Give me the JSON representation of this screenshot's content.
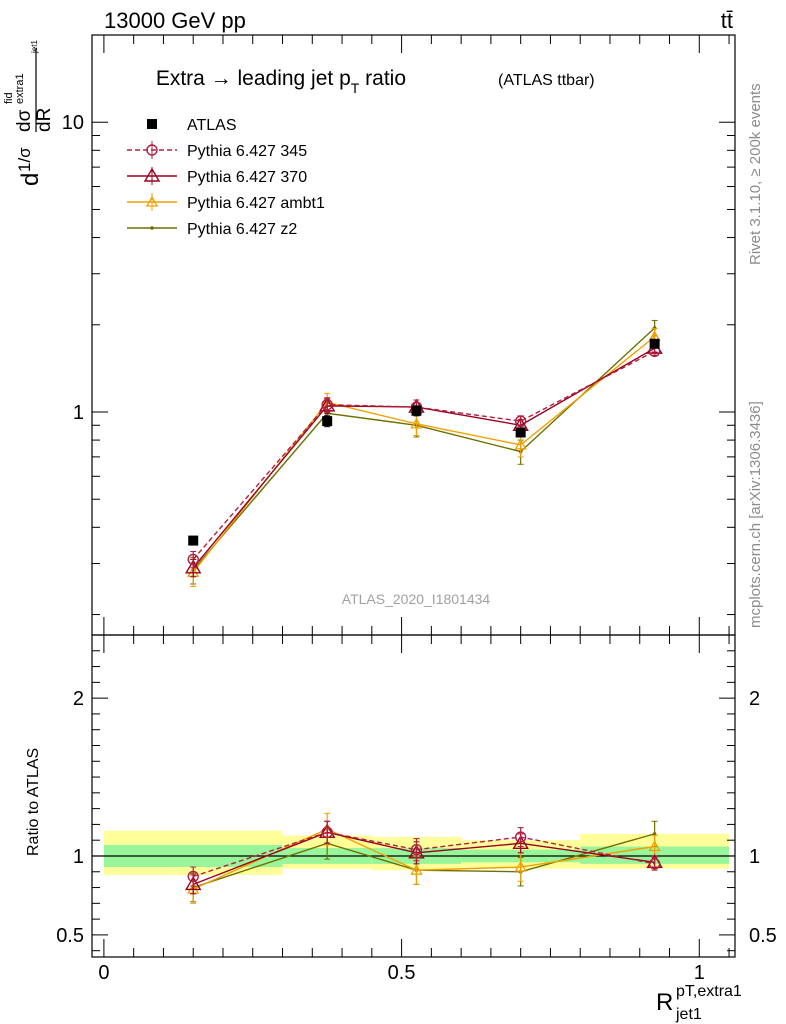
{
  "header": {
    "energy_label": "13000 GeV pp",
    "process_label": "tt̄"
  },
  "side_labels": {
    "rivet": "Rivet 3.1.10, ≥ 200k events",
    "mcplots": "mcplots.cern.ch [arXiv:1306.3436]"
  },
  "watermark": "ATLAS_2020_I1801434",
  "colors": {
    "data": "#000000",
    "p345": "#b02040",
    "p370": "#990020",
    "ambt1": "#f0a000",
    "z2": "#707000",
    "band_inner": "#99f599",
    "band_outer": "#ffff99"
  },
  "chart_data": [
    {
      "type": "line",
      "panel": "main",
      "title": {
        "main": "Extra → leading jet p",
        "sub": "T",
        "rest": " ratio",
        "small": "(ATLAS ttbar)"
      },
      "ylabel": {
        "base": "d",
        "frac": "1/σ",
        "num": "dσ",
        "num_sup": "fid",
        "num_sub": "extra1",
        "den": "dR",
        "den_sub": "jet1"
      },
      "yscale": "log",
      "ylim": [
        0.17,
        20
      ],
      "xlim": [
        -0.02,
        1.06
      ],
      "yticks": [
        {
          "value": 1,
          "label": "1"
        },
        {
          "value": 10,
          "label": "10"
        }
      ],
      "legend_position": "top-left",
      "series": [
        {
          "name": "ATLAS",
          "key": "data",
          "marker": "square",
          "x": [
            0.15,
            0.375,
            0.525,
            0.7,
            0.925
          ],
          "y": [
            0.36,
            0.93,
            1.01,
            0.85,
            1.72
          ],
          "err": [
            0.01,
            0.04,
            0.04,
            0.03,
            0.05
          ]
        },
        {
          "name": "Pythia 6.427 345",
          "key": "p345",
          "marker": "circle",
          "dashed": true,
          "x": [
            0.15,
            0.375,
            0.525,
            0.7,
            0.925
          ],
          "y": [
            0.31,
            1.06,
            1.04,
            0.93,
            1.62
          ],
          "err": [
            0.02,
            0.06,
            0.06,
            0.04,
            0.05
          ]
        },
        {
          "name": "Pythia 6.427 370",
          "key": "p370",
          "marker": "triangle",
          "x": [
            0.15,
            0.375,
            0.525,
            0.7,
            0.925
          ],
          "y": [
            0.29,
            1.05,
            1.04,
            0.9,
            1.66
          ],
          "err": [
            0.02,
            0.06,
            0.06,
            0.04,
            0.05
          ]
        },
        {
          "name": "Pythia 6.427 ambt1",
          "key": "ambt1",
          "marker": "triangle-small",
          "x": [
            0.15,
            0.375,
            0.525,
            0.7,
            0.925
          ],
          "y": [
            0.28,
            1.08,
            0.91,
            0.77,
            1.82
          ],
          "err": [
            0.03,
            0.08,
            0.08,
            0.07,
            0.12
          ]
        },
        {
          "name": "Pythia 6.427 z2",
          "key": "z2",
          "marker": "dot",
          "x": [
            0.15,
            0.375,
            0.525,
            0.7,
            0.925
          ],
          "y": [
            0.285,
            0.99,
            0.9,
            0.73,
            1.95
          ],
          "err": [
            0.03,
            0.08,
            0.08,
            0.07,
            0.12
          ]
        }
      ]
    },
    {
      "type": "line",
      "panel": "ratio",
      "ylabel": "Ratio to ATLAS",
      "xlabel": {
        "base": "R",
        "sup": "pT,extra1",
        "sub": "jet1"
      },
      "ylim": [
        0.36,
        2.4
      ],
      "xlim": [
        -0.02,
        1.06
      ],
      "yticks": [
        {
          "value": 0.5,
          "label": "0.5"
        },
        {
          "value": 1,
          "label": "1"
        },
        {
          "value": 2,
          "label": "2"
        }
      ],
      "xticks": [
        {
          "value": 0,
          "label": "0"
        },
        {
          "value": 0.5,
          "label": "0.5"
        },
        {
          "value": 1,
          "label": "1"
        }
      ],
      "bands": [
        {
          "x0": 0.0,
          "x1": 0.3,
          "inner": [
            0.93,
            1.07
          ],
          "outer": [
            0.88,
            1.16
          ]
        },
        {
          "x0": 0.3,
          "x1": 0.45,
          "inner": [
            0.95,
            1.05
          ],
          "outer": [
            0.92,
            1.13
          ]
        },
        {
          "x0": 0.45,
          "x1": 0.6,
          "inner": [
            0.95,
            1.05
          ],
          "outer": [
            0.91,
            1.12
          ]
        },
        {
          "x0": 0.6,
          "x1": 0.8,
          "inner": [
            0.96,
            1.04
          ],
          "outer": [
            0.92,
            1.1
          ]
        },
        {
          "x0": 0.8,
          "x1": 1.05,
          "inner": [
            0.95,
            1.06
          ],
          "outer": [
            0.92,
            1.14
          ]
        }
      ],
      "series": [
        {
          "name": "Pythia 6.427 345",
          "key": "p345",
          "marker": "circle",
          "dashed": true,
          "x": [
            0.15,
            0.375,
            0.525,
            0.7,
            0.925
          ],
          "y": [
            0.87,
            1.15,
            1.04,
            1.12,
            0.95
          ],
          "err": [
            0.06,
            0.07,
            0.07,
            0.06,
            0.04
          ]
        },
        {
          "name": "Pythia 6.427 370",
          "key": "p370",
          "marker": "triangle",
          "x": [
            0.15,
            0.375,
            0.525,
            0.7,
            0.925
          ],
          "y": [
            0.82,
            1.15,
            1.02,
            1.08,
            0.96
          ],
          "err": [
            0.06,
            0.07,
            0.07,
            0.06,
            0.04
          ]
        },
        {
          "name": "Pythia 6.427 ambt1",
          "key": "ambt1",
          "marker": "triangle-small",
          "x": [
            0.15,
            0.375,
            0.525,
            0.7,
            0.925
          ],
          "y": [
            0.79,
            1.17,
            0.91,
            0.93,
            1.06
          ],
          "err": [
            0.09,
            0.1,
            0.09,
            0.09,
            0.07
          ]
        },
        {
          "name": "Pythia 6.427 z2",
          "key": "z2",
          "marker": "dot",
          "x": [
            0.15,
            0.375,
            0.525,
            0.7,
            0.925
          ],
          "y": [
            0.8,
            1.08,
            0.91,
            0.9,
            1.14
          ],
          "err": [
            0.09,
            0.1,
            0.09,
            0.09,
            0.08
          ]
        }
      ]
    }
  ]
}
